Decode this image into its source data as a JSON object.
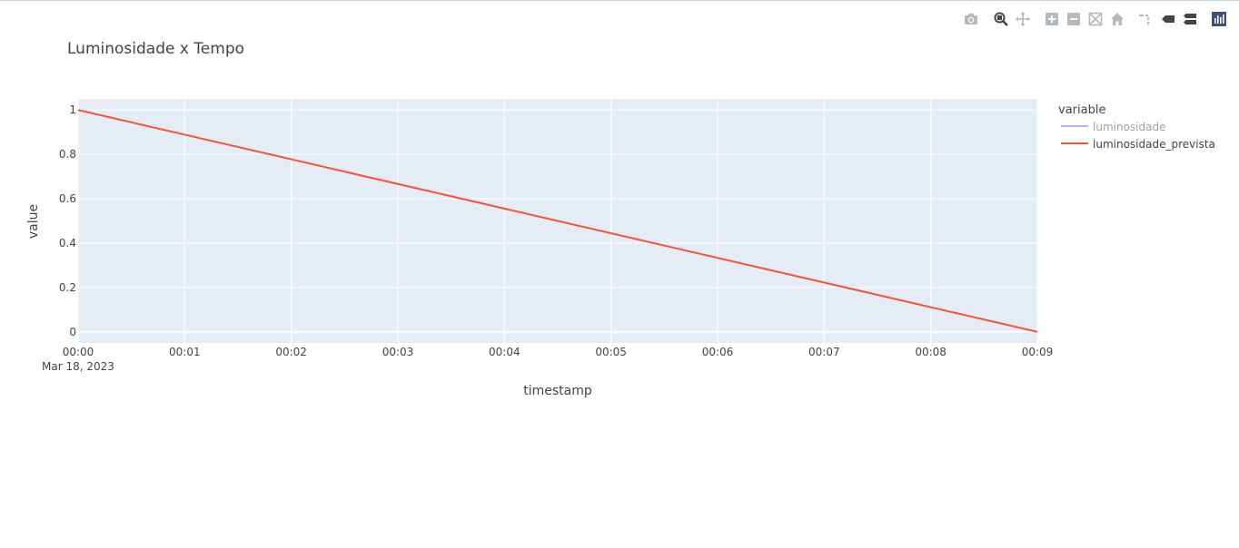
{
  "modebar": {
    "buttons": [
      {
        "name": "camera-icon",
        "label": "Download plot as a png"
      },
      {
        "name": "zoom-icon",
        "label": "Zoom"
      },
      {
        "name": "pan-icon",
        "label": "Pan"
      },
      {
        "name": "zoom-in-icon",
        "label": "Zoom in"
      },
      {
        "name": "zoom-out-icon",
        "label": "Zoom out"
      },
      {
        "name": "autoscale-icon",
        "label": "Autoscale"
      },
      {
        "name": "home-icon",
        "label": "Reset axes"
      },
      {
        "name": "spike-lines-icon",
        "label": "Toggle Spike Lines"
      },
      {
        "name": "hover-closest-icon",
        "label": "Show closest data on hover"
      },
      {
        "name": "hover-compare-icon",
        "label": "Compare data on hover"
      },
      {
        "name": "plotly-logo-icon",
        "label": "Produced with Plotly"
      }
    ],
    "active_color": "#444444",
    "inactive_color": "#b4b9c0",
    "logo_color": "#3f4f75"
  },
  "chart_data": {
    "type": "line",
    "title": "Luminosidade x Tempo",
    "xlabel": "timestamp",
    "ylabel": "value",
    "x_ticks": [
      "00:00",
      "00:01",
      "00:02",
      "00:03",
      "00:04",
      "00:05",
      "00:06",
      "00:07",
      "00:08",
      "00:09"
    ],
    "x_date_label": "Mar 18, 2023",
    "x_range_minutes": [
      0,
      9
    ],
    "y_ticks": [
      "0",
      "0.2",
      "0.4",
      "0.6",
      "0.8",
      "1"
    ],
    "y_tick_values": [
      0,
      0.2,
      0.4,
      0.6,
      0.8,
      1
    ],
    "ylim": [
      -0.05,
      1.05
    ],
    "grid": true,
    "plot_bgcolor": "#e5ecf6",
    "legend": {
      "title": "variable",
      "position": "right"
    },
    "series": [
      {
        "name": "luminosidade",
        "color": "#636efa",
        "visible": "legendonly",
        "x": [],
        "y": []
      },
      {
        "name": "luminosidade_prevista",
        "color": "#ef553b",
        "visible": true,
        "x": [
          "00:00",
          "00:09"
        ],
        "y": [
          1,
          0
        ]
      }
    ]
  }
}
